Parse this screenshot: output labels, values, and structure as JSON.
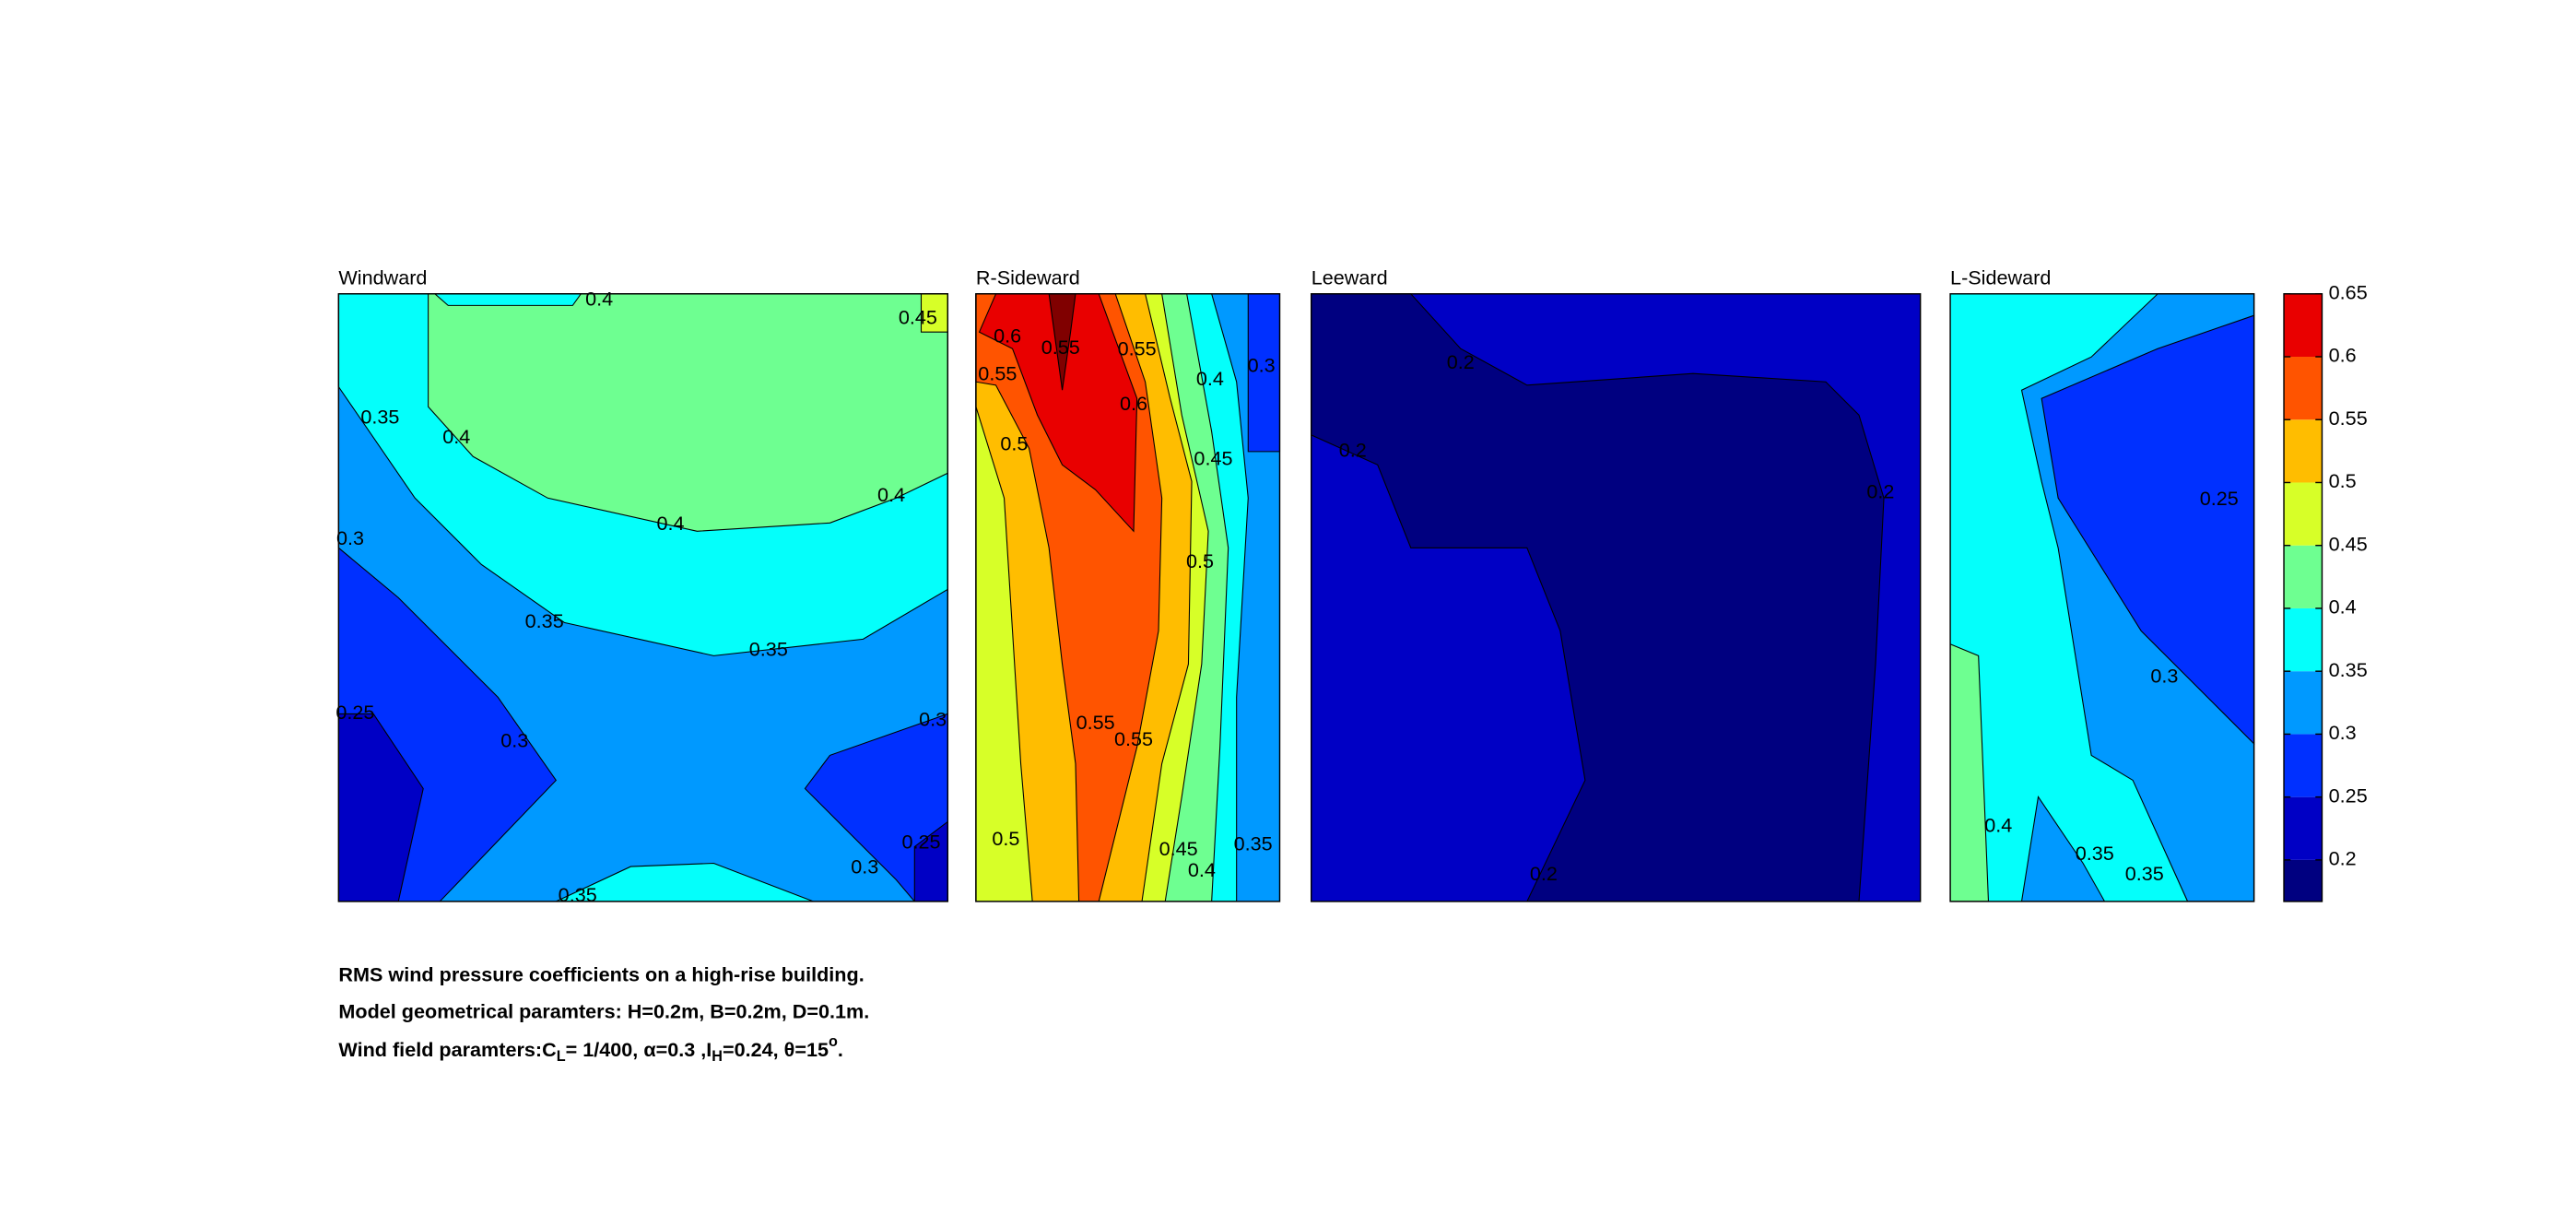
{
  "chart_data": [
    {
      "type": "contour",
      "title": "Windward",
      "contour_labels": [
        0.4,
        0.45,
        0.35,
        0.4,
        0.4,
        0.3,
        0.4,
        0.35,
        0.35,
        0.25,
        0.3,
        0.3,
        0.3,
        0.25,
        0.35
      ]
    },
    {
      "type": "contour",
      "title": "R-Sideward",
      "contour_labels": [
        0.6,
        0.55,
        0.55,
        0.55,
        0.6,
        0.4,
        0.3,
        0.5,
        0.45,
        0.5,
        0.55,
        0.55,
        0.5,
        0.45,
        0.4,
        0.35
      ]
    },
    {
      "type": "contour",
      "title": "Leeward",
      "contour_labels": [
        0.2,
        0.2,
        0.2,
        0.2
      ]
    },
    {
      "type": "contour",
      "title": "L-Sideward",
      "contour_labels": [
        0.25,
        0.3,
        0.4,
        0.35,
        0.35
      ]
    }
  ],
  "colorbar": {
    "colormap": "jet",
    "ylim": [
      0.167,
      0.65
    ],
    "yticks": [
      0.2,
      0.25,
      0.3,
      0.35,
      0.4,
      0.45,
      0.5,
      0.55,
      0.6,
      0.65
    ]
  },
  "caption": [
    "RMS wind pressure coefficients on a high-rise building.",
    "Model geometrical paramters: H=0.2m, B=0.2m, D=0.1m.",
    [
      "Wind field paramters:C",
      "L",
      "= 1/400, α=0.3 ,I",
      "H",
      "=0.24, θ=15",
      "o",
      "."
    ]
  ]
}
